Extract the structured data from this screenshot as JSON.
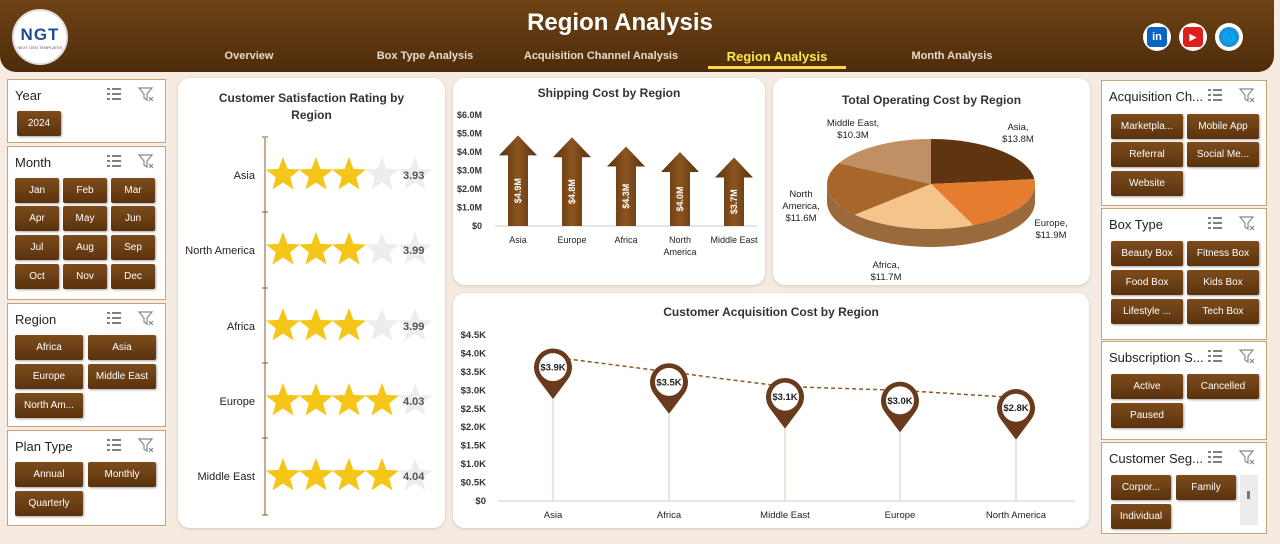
{
  "header": {
    "title": "Region Analysis",
    "logo_text": "NGT",
    "logo_sub": "NEXT GEN TEMPLATES",
    "nav": [
      "Overview",
      "Box Type Analysis",
      "Acquisition Channel Analysis",
      "Region Analysis",
      "Month Analysis"
    ],
    "active_nav": "Region Analysis",
    "social": [
      "in",
      "▶",
      "🌐"
    ]
  },
  "left_slicers": {
    "year": {
      "title": "Year",
      "items": [
        "2024"
      ]
    },
    "month": {
      "title": "Month",
      "items": [
        "Jan",
        "Feb",
        "Mar",
        "Apr",
        "May",
        "Jun",
        "Jul",
        "Aug",
        "Sep",
        "Oct",
        "Nov",
        "Dec"
      ]
    },
    "region": {
      "title": "Region",
      "items": [
        "Africa",
        "Asia",
        "Europe",
        "Middle East",
        "North Am..."
      ]
    },
    "plan_type": {
      "title": "Plan Type",
      "items": [
        "Annual",
        "Monthly",
        "Quarterly"
      ]
    }
  },
  "right_slicers": {
    "acquisition": {
      "title": "Acquisition Ch...",
      "items": [
        "Marketpla...",
        "Mobile App",
        "Referral",
        "Social Me...",
        "Website"
      ]
    },
    "box_type": {
      "title": "Box Type",
      "items": [
        "Beauty Box",
        "Fitness Box",
        "Food Box",
        "Kids Box",
        "Lifestyle ...",
        "Tech Box"
      ]
    },
    "subscription": {
      "title": "Subscription S...",
      "items": [
        "Active",
        "Cancelled",
        "Paused"
      ]
    },
    "segment": {
      "title": "Customer Seg...",
      "items": [
        "Corpor...",
        "Family",
        "Individual"
      ]
    }
  },
  "satisfaction": {
    "title_line1": "Customer Satisfaction Rating by",
    "title_line2": "Region",
    "chart_data": {
      "type": "bar",
      "categories": [
        "Asia",
        "North America",
        "Africa",
        "Europe",
        "Middle East"
      ],
      "values": [
        3.93,
        3.99,
        3.99,
        4.03,
        4.04
      ],
      "labels": [
        "3.93",
        "3.99",
        "3.99",
        "4.03",
        "4.04"
      ],
      "max": 5
    }
  },
  "shipping": {
    "title": "Shipping Cost by Region",
    "chart_data": {
      "type": "bar",
      "categories": [
        "Asia",
        "Europe",
        "Africa",
        "North America",
        "Middle East"
      ],
      "values": [
        4.9,
        4.8,
        4.3,
        4.0,
        3.7
      ],
      "labels": [
        "$4.9M",
        "$4.8M",
        "$4.3M",
        "$4.0M",
        "$3.7M"
      ],
      "yticks": [
        "$6.0M",
        "$5.0M",
        "$4.0M",
        "$3.0M",
        "$2.0M",
        "$1.0M",
        "$0"
      ],
      "ylim": [
        0,
        6
      ]
    }
  },
  "operating": {
    "title": "Total Operating Cost by Region",
    "chart_data": {
      "type": "pie",
      "labels": [
        "Asia",
        "Europe",
        "Africa",
        "North America",
        "Middle East"
      ],
      "values": [
        13.8,
        11.9,
        11.7,
        11.6,
        10.3
      ],
      "value_labels": [
        "$13.8M",
        "$11.9M",
        "$11.7M",
        "$11.6M",
        "$10.3M"
      ]
    },
    "colors": [
      "#5e3510",
      "#e57c2e",
      "#f4c48a",
      "#a8662b",
      "#c09064"
    ]
  },
  "acquisition_cost": {
    "title": "Customer Acquisition Cost by Region",
    "chart_data": {
      "type": "line",
      "categories": [
        "Asia",
        "Africa",
        "Middle East",
        "Europe",
        "North America"
      ],
      "values": [
        3.9,
        3.5,
        3.1,
        3.0,
        2.8
      ],
      "labels": [
        "$3.9K",
        "$3.5K",
        "$3.1K",
        "$3.0K",
        "$2.8K"
      ],
      "yticks": [
        "$4.5K",
        "$4.0K",
        "$3.5K",
        "$3.0K",
        "$2.5K",
        "$2.0K",
        "$1.5K",
        "$1.0K",
        "$0.5K",
        "$0"
      ],
      "ylim": [
        0,
        4.5
      ]
    }
  }
}
